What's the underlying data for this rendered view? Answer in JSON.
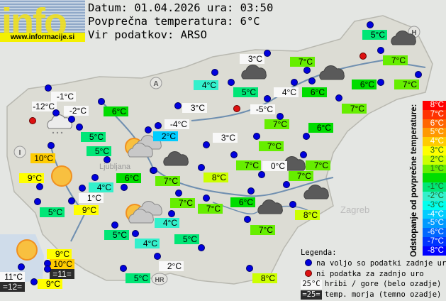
{
  "header": {
    "logo_text": "info",
    "logo_url": "www.informacije.si",
    "date_line": "Datum: 01.04.2026 ura: 03:50",
    "avg_line": "Povprečna temperatura: 6°C",
    "source_line": "Vir podatkov: ARSO"
  },
  "average_temp": 6,
  "stations": [
    {
      "t": "5°C"
    },
    {
      "t": "7°C"
    },
    {
      "t": "7°C"
    },
    {
      "t": "6°C"
    },
    {
      "t": "3°C",
      "type": "mountain"
    },
    {
      "t": "7°C"
    },
    {
      "t": "5°C"
    },
    {
      "t": "4°C",
      "type": "mountain"
    },
    {
      "t": "6°C"
    },
    {
      "t": "4°C"
    },
    {
      "t": "-5°C",
      "type": "mountain"
    },
    {
      "t": "7°C"
    },
    {
      "t": "7°C"
    },
    {
      "t": "6°C"
    },
    {
      "t": "7°C"
    },
    {
      "t": "3°C",
      "type": "mountain"
    },
    {
      "t": "7°C"
    },
    {
      "t": "0°C",
      "type": "mountain"
    },
    {
      "t": "7°C"
    },
    {
      "t": "7°C"
    },
    {
      "t": "8°C"
    },
    {
      "t": "7°C"
    },
    {
      "t": "7°C"
    },
    {
      "t": "7°C"
    },
    {
      "t": "6°C"
    },
    {
      "t": "8°C"
    },
    {
      "t": "7°C"
    },
    {
      "t": "4°C"
    },
    {
      "t": "5°C"
    },
    {
      "t": "4°C"
    },
    {
      "t": "2°C",
      "type": "mountain"
    },
    {
      "t": "8°C"
    },
    {
      "t": "5°C"
    },
    {
      "t": "5°C"
    },
    {
      "t": "-1°C",
      "type": "mountain"
    },
    {
      "t": "-12°C",
      "type": "mountain"
    },
    {
      "t": "-2°C",
      "type": "mountain"
    },
    {
      "t": "6°C"
    },
    {
      "t": "5°C"
    },
    {
      "t": "5°C"
    },
    {
      "t": "3°C",
      "type": "mountain"
    },
    {
      "t": "-4°C",
      "type": "mountain"
    },
    {
      "t": "2°C"
    },
    {
      "t": "10°C"
    },
    {
      "t": "9°C"
    },
    {
      "t": "4°C"
    },
    {
      "t": "6°C"
    },
    {
      "t": "1°C",
      "type": "mountain"
    },
    {
      "t": "9°C"
    },
    {
      "t": "5°C"
    },
    {
      "t": "9°C"
    },
    {
      "t": "10°C"
    },
    {
      "t": "=11=",
      "type": "sea"
    },
    {
      "t": "9°C"
    },
    {
      "t": "11°C",
      "type": "mountain"
    },
    {
      "t": "=12=",
      "type": "sea"
    }
  ],
  "weather_icons": [
    "cloudy",
    "cloudy",
    "cloudy",
    "cloudy",
    "cloudy",
    "cloudy",
    "cloudy",
    "snow-cloud",
    "sunny",
    "sunny",
    "partly-cloudy",
    "partly-cloudy"
  ],
  "map_labels": {
    "austria": "A",
    "italy": "I",
    "hungary": "H",
    "croatia": "HR",
    "city_ljubljana": "Ljubljana",
    "city_zagreb": "Zagreb"
  },
  "scale": {
    "title": "Odstopanje od povprečne temperature:",
    "items": [
      {
        "label": "8°C",
        "dev": 8,
        "color": "#ff0000"
      },
      {
        "label": "7°C",
        "dev": 7,
        "color": "#ff3300"
      },
      {
        "label": "6°C",
        "dev": 6,
        "color": "#ff6600"
      },
      {
        "label": "5°C",
        "dev": 5,
        "color": "#ff9900"
      },
      {
        "label": "4°C",
        "dev": 4,
        "color": "#ffcc00"
      },
      {
        "label": "3°C",
        "dev": 3,
        "color": "#ffff00"
      },
      {
        "label": "2°C",
        "dev": 2,
        "color": "#ccff00"
      },
      {
        "label": "1°C",
        "dev": 1,
        "color": "#66ee00"
      },
      {
        "label": "",
        "dev": 0,
        "color": "#00dd00"
      },
      {
        "label": "-1°C",
        "dev": -1,
        "color": "#00e676"
      },
      {
        "label": "-2°C",
        "dev": -2,
        "color": "#33f0cc"
      },
      {
        "label": "-3°C",
        "dev": -3,
        "color": "#00ffee"
      },
      {
        "label": "-4°C",
        "dev": -4,
        "color": "#00ccff"
      },
      {
        "label": "-5°C",
        "dev": -5,
        "color": "#0099ff"
      },
      {
        "label": "-6°C",
        "dev": -6,
        "color": "#0066ff"
      },
      {
        "label": "-7°C",
        "dev": -7,
        "color": "#0033ff"
      },
      {
        "label": "-8°C",
        "dev": -8,
        "color": "#0000ff"
      }
    ]
  },
  "legend": {
    "title": "Legenda:",
    "available": "na voljo so podatki zadnje ure",
    "missing": "ni podatka za zadnjo uro",
    "mountain_sample": "25°C",
    "mountain_text": "hribi / gore (belo ozadje)",
    "sea_sample": "=25=",
    "sea_text": "temp. morja (temno ozadje)"
  }
}
